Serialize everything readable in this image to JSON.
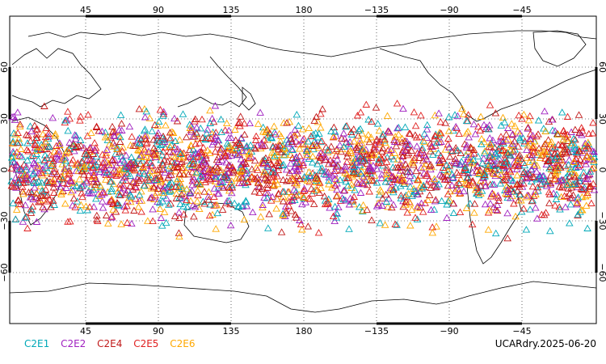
{
  "map": {
    "top_lon_ticks": [
      "45",
      "90",
      "135",
      "180",
      "−135",
      "−90",
      "−45"
    ],
    "bottom_lon_ticks": [
      "45",
      "90",
      "135",
      "180",
      "−135",
      "−90",
      "−45"
    ],
    "lat_ticks_left": [
      "60",
      "30",
      "0",
      "−30",
      "−60"
    ],
    "lat_ticks_right": [
      "60",
      "30",
      "0",
      "−30",
      "−60"
    ],
    "marker_shape": "triangle-outline",
    "coverage_note_lat_range_deg": [
      -45,
      45
    ]
  },
  "legend": [
    {
      "label": "C2E1",
      "color": "#00a8b8"
    },
    {
      "label": "C2E2",
      "color": "#a020c0"
    },
    {
      "label": "C2E4",
      "color": "#c01818"
    },
    {
      "label": "C2E5",
      "color": "#e02020"
    },
    {
      "label": "C2E6",
      "color": "#ffa800"
    }
  ],
  "footer": {
    "dataset": "UCARdry.2025-06-20"
  }
}
